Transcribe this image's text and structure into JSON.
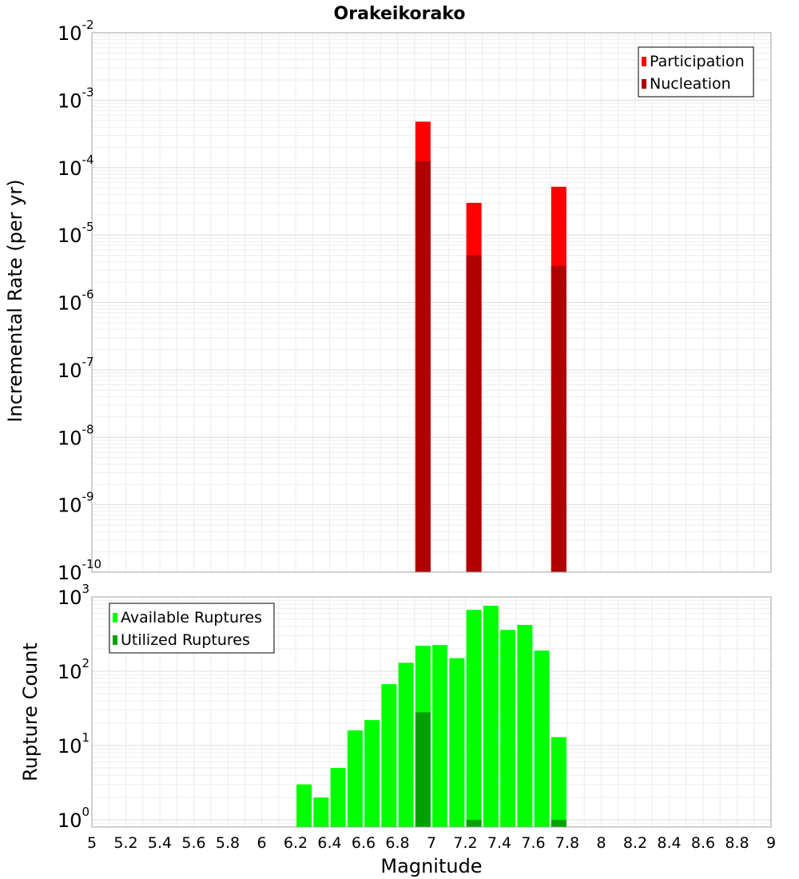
{
  "chart_data": [
    {
      "type": "bar",
      "title": "Orakeikorako",
      "xlabel": "",
      "ylabel": "Incremental Rate (per yr)",
      "yscale": "log",
      "xlim": [
        5,
        9
      ],
      "ylim": [
        1e-10,
        0.01
      ],
      "y_tick_exponents": [
        -10,
        -9,
        -8,
        -7,
        -6,
        -5,
        -4,
        -3,
        -2
      ],
      "grid": true,
      "legend_position": "top-right",
      "series": [
        {
          "name": "Participation",
          "color": "#ff0000",
          "x": [
            6.95,
            7.25,
            7.75
          ],
          "values": [
            0.00048,
            3e-05,
            5.2e-05
          ]
        },
        {
          "name": "Nucleation",
          "color": "#b00000",
          "x": [
            6.95,
            7.25,
            7.75
          ],
          "values": [
            0.000125,
            5e-06,
            3.5e-06
          ]
        }
      ]
    },
    {
      "type": "bar",
      "title": "",
      "xlabel": "Magnitude",
      "ylabel": "Rupture Count",
      "yscale": "log",
      "xlim": [
        5,
        9
      ],
      "ylim": [
        0.8,
        1000
      ],
      "y_tick_exponents": [
        0,
        1,
        2,
        3
      ],
      "x_ticks": [
        "5",
        "5.2",
        "5.4",
        "5.6",
        "5.8",
        "6",
        "6.2",
        "6.4",
        "6.6",
        "6.8",
        "7",
        "7.2",
        "7.4",
        "7.6",
        "7.8",
        "8",
        "8.2",
        "8.4",
        "8.6",
        "8.8",
        "9"
      ],
      "grid": true,
      "legend_position": "top-left",
      "series": [
        {
          "name": "Available Ruptures",
          "color": "#00ff00",
          "x": [
            6.25,
            6.35,
            6.45,
            6.55,
            6.65,
            6.75,
            6.85,
            6.95,
            7.05,
            7.15,
            7.25,
            7.35,
            7.45,
            7.55,
            7.65,
            7.75
          ],
          "values": [
            3,
            2,
            5,
            16,
            22,
            67,
            130,
            220,
            225,
            150,
            670,
            760,
            360,
            420,
            190,
            13
          ]
        },
        {
          "name": "Utilized Ruptures",
          "color": "#00a000",
          "x": [
            6.95,
            7.25,
            7.75
          ],
          "values": [
            28,
            1,
            1
          ]
        }
      ]
    }
  ]
}
